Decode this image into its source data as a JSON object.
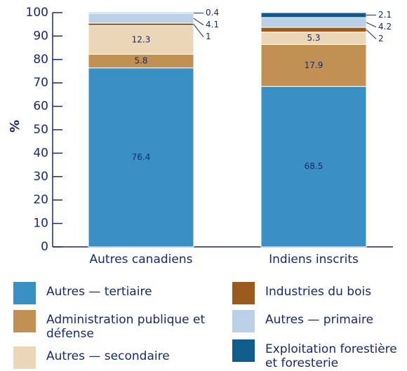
{
  "chart_data": {
    "type": "stacked_bar",
    "ylabel": "%",
    "categories": [
      "Autres canadiens",
      "Indiens inscrits"
    ],
    "series": [
      {
        "name": "Autres — tertiaire",
        "color": "#3a8fc4",
        "values": [
          76.4,
          68.5
        ]
      },
      {
        "name": "Administration publique et défense",
        "color": "#c19052",
        "values": [
          5.8,
          17.9
        ]
      },
      {
        "name": "Autres — secondaire",
        "color": "#ecd6b8",
        "values": [
          12.3,
          5.3
        ]
      },
      {
        "name": "Industries du bois",
        "color": "#9a5a1c",
        "values": [
          1.0,
          2.0
        ]
      },
      {
        "name": "Autres — primaire",
        "color": "#bad0e7",
        "values": [
          4.1,
          4.2
        ]
      },
      {
        "name": "Exploitation forestière et foresterie",
        "color": "#105c8c",
        "values": [
          0.4,
          2.1
        ]
      }
    ],
    "ylim": [
      0,
      100
    ],
    "yticks": [
      0,
      10,
      20,
      30,
      40,
      50,
      60,
      70,
      80,
      90,
      100
    ]
  }
}
